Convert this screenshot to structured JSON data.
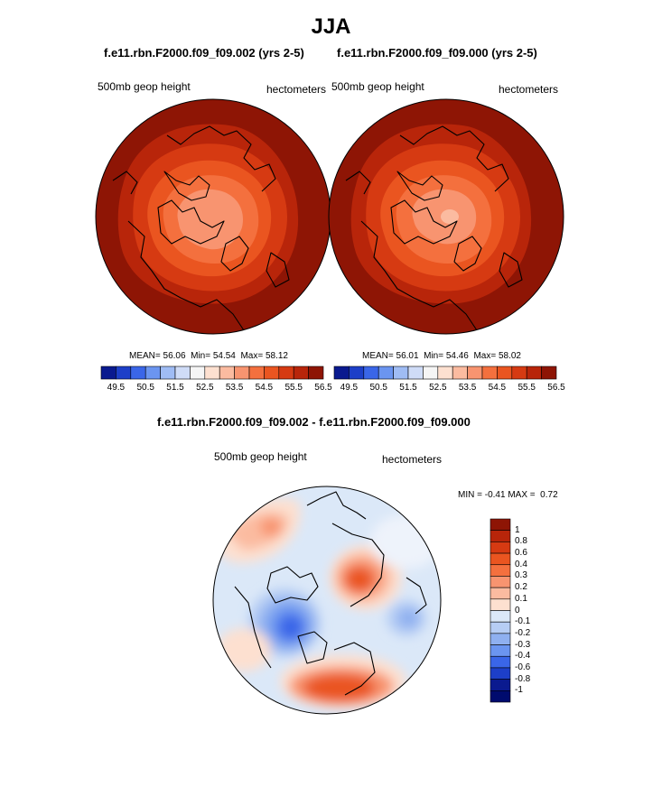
{
  "figure": {
    "title": "JJA",
    "panels": [
      {
        "case": "f.e11.rbn.F2000.f09_f09.002 (yrs 2-5)",
        "variable": "500mb geop height",
        "units": "hectometers",
        "mean_label": "MEAN=",
        "mean": "56.06",
        "min_label": "Min=",
        "min": "54.54",
        "max_label": "Max=",
        "max": "58.12"
      },
      {
        "case": "f.e11.rbn.F2000.f09_f09.000 (yrs 2-5)",
        "variable": "500mb geop height",
        "units": "hectometers",
        "mean_label": "MEAN=",
        "mean": "56.01",
        "min_label": "Min=",
        "min": "54.46",
        "max_label": "Max=",
        "max": "58.02"
      }
    ],
    "difference": {
      "title": "f.e11.rbn.F2000.f09_f09.002 - f.e11.rbn.F2000.f09_f09.000",
      "variable": "500mb geop height",
      "units": "hectometers",
      "min_label": "MIN =",
      "min": "-0.41",
      "max_label": "MAX =",
      "max": "0.72"
    }
  },
  "colorbar_top": {
    "labels": [
      "49.5",
      "50.5",
      "51.5",
      "52.5",
      "53.5",
      "54.5",
      "55.5",
      "56.5"
    ],
    "colors": [
      "#0a1a8f",
      "#1d3fc8",
      "#3a66e8",
      "#6b95f0",
      "#9fbcf4",
      "#cfdcf7",
      "#f5f5f5",
      "#fde0d0",
      "#fbbba0",
      "#f89470",
      "#f4703e",
      "#ea5520",
      "#d63a12",
      "#b8250a",
      "#8e1505"
    ]
  },
  "colorbar_diff": {
    "labels": [
      "1",
      "0.8",
      "0.6",
      "0.4",
      "0.3",
      "0.2",
      "0.1",
      "0",
      "-0.1",
      "-0.2",
      "-0.3",
      "-0.4",
      "-0.6",
      "-0.8",
      "-1"
    ],
    "colors": [
      "#8e1505",
      "#b8250a",
      "#d63a12",
      "#ea5520",
      "#f4703e",
      "#f89470",
      "#fbbba0",
      "#fde0d0",
      "#dbe8f8",
      "#b6cdf4",
      "#8fb0f0",
      "#6b95f0",
      "#3a66e8",
      "#1d3fc8",
      "#0a1a8f",
      "#000b6e"
    ]
  }
}
